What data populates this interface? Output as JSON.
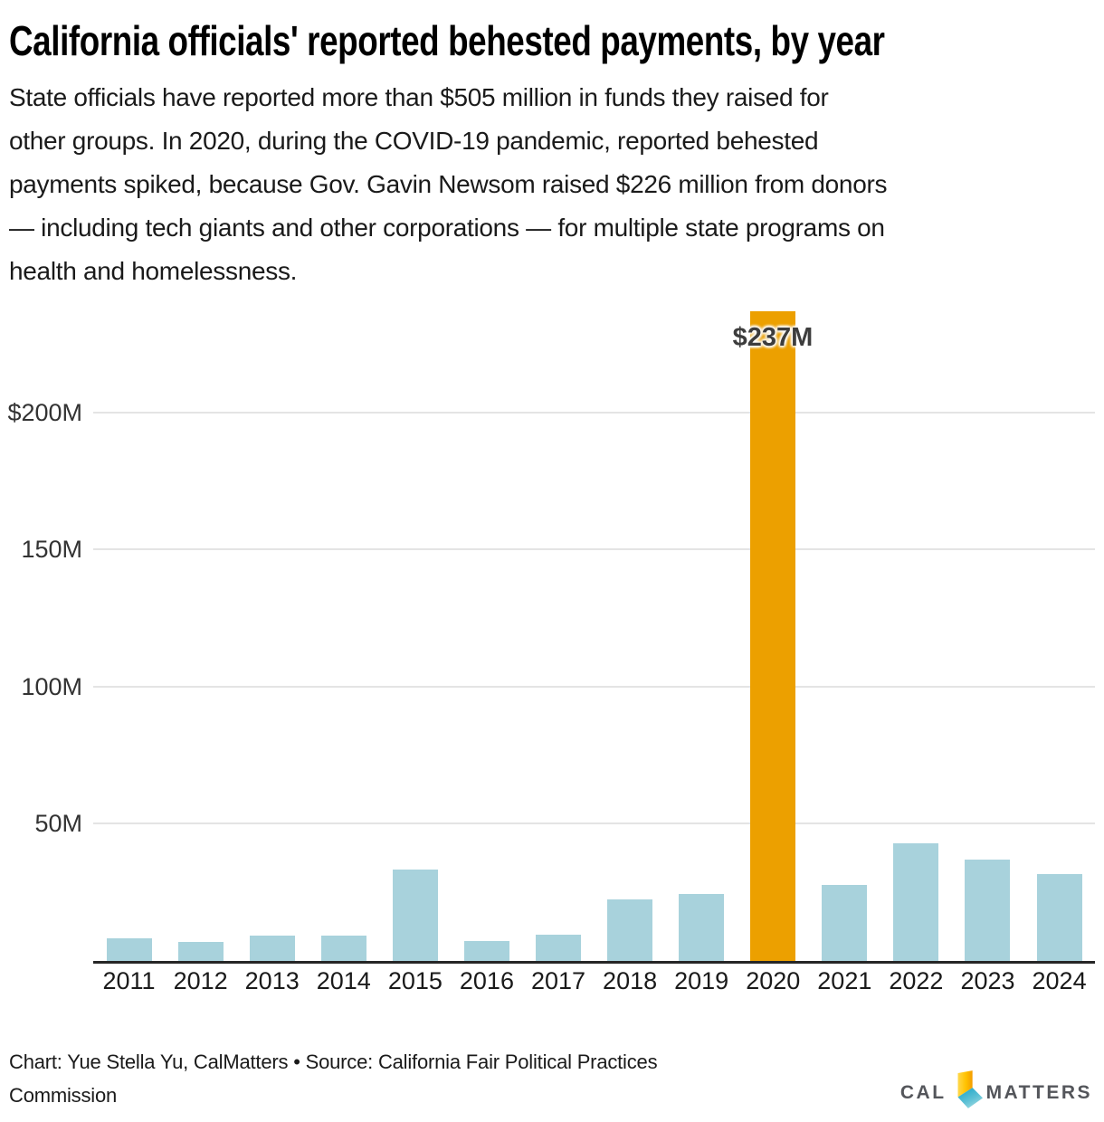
{
  "title": "California officials' reported behested payments, by year",
  "subtitle": {
    "lines": [
      "State officials have reported more than $505 million in funds they raised for",
      "other groups. In 2020, during the COVID-19 pandemic, reported behested",
      "payments spiked, because Gov. Gavin Newsom raised $226 million from donors",
      "— including tech giants and other corporations — for multiple state programs on",
      "health and homelessness."
    ]
  },
  "chart_data": {
    "type": "bar",
    "title": "California officials' reported behested payments, by year",
    "xlabel": "",
    "ylabel": "",
    "categories": [
      "2011",
      "2012",
      "2013",
      "2014",
      "2015",
      "2016",
      "2017",
      "2018",
      "2019",
      "2020",
      "2021",
      "2022",
      "2023",
      "2024"
    ],
    "values": [
      8.1,
      6.8,
      9.3,
      9.1,
      33.2,
      7.2,
      9.7,
      22.4,
      24.5,
      237,
      27.8,
      42.9,
      36.8,
      31.6
    ],
    "unit": "millions of dollars",
    "ylim": [
      0,
      237.5
    ],
    "yticks": [
      {
        "label": "$200M",
        "value": 200
      },
      {
        "label": "150M",
        "value": 150
      },
      {
        "label": "100M",
        "value": 100
      },
      {
        "label": "50M",
        "value": 50
      }
    ],
    "grid": "horizontal",
    "legend": "none",
    "highlight_category": "2020",
    "highlight_label": "$237M",
    "bar_color": "#a8d2dc",
    "highlight_color": "#eca000"
  },
  "footer": {
    "lines": [
      "Chart: Yue Stella Yu, CalMatters • Source: California Fair Political Practices",
      "Commission"
    ]
  },
  "logo": {
    "cal": "CAL",
    "matters": "MATTERS",
    "icon": "california-state-icon",
    "colors": {
      "text": "#54565b",
      "yellow": "#ffce00",
      "orange": "#f49c00",
      "teal_dark": "#1fa6c9",
      "teal_light": "#a7dde2"
    }
  },
  "colors": {
    "background": "#ffffff",
    "gridline": "#e4e4e4",
    "axis": "#262626",
    "title_text": "#000000",
    "body_text": "#1a1a1a",
    "tick_text": "#333333",
    "highlight_text": "#3d3d3d"
  }
}
